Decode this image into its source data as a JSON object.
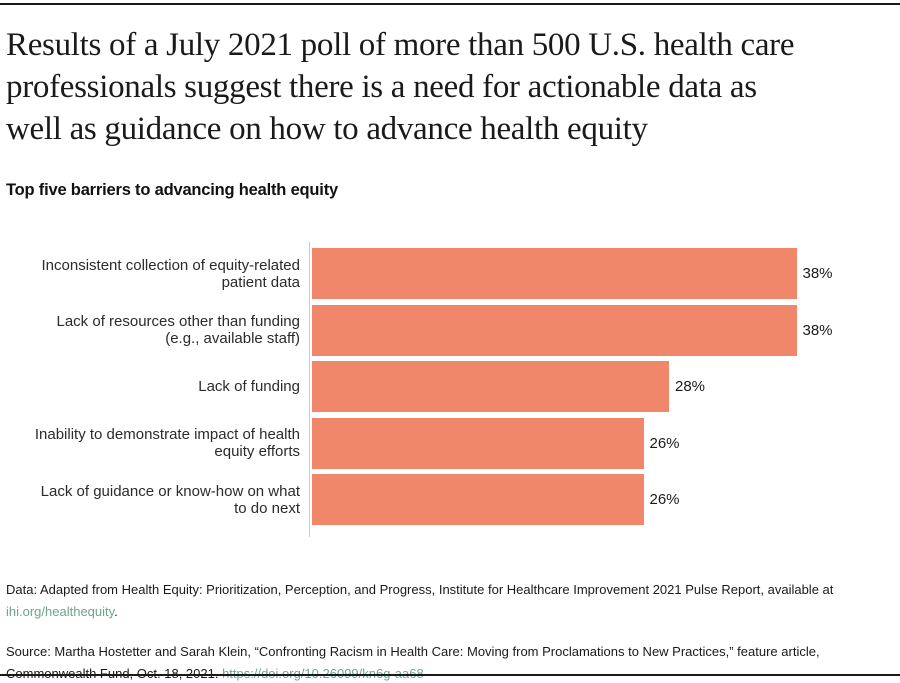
{
  "header": {
    "title_lines": [
      "Results of a July 2021 poll of more than 500 U.S. health care",
      "professionals suggest there is a need for actionable data as",
      "well as guidance on how to advance health equity"
    ],
    "subtitle": "Top five barriers to advancing health equity"
  },
  "chart_data": {
    "type": "bar",
    "orientation": "horizontal",
    "title": "Top five barriers to advancing health equity",
    "categories": [
      "Inconsistent collection of equity-related patient data",
      "Lack of resources other than funding (e.g., available staff)",
      "Lack of funding",
      "Inability to demonstrate impact of health equity efforts",
      "Lack of guidance or know-how on what to do next"
    ],
    "category_label_lines": [
      [
        "Inconsistent collection of equity-related",
        "patient data"
      ],
      [
        "Lack of resources other than funding",
        "(e.g., available staff)"
      ],
      [
        "Lack of funding"
      ],
      [
        "Inability to demonstrate impact of health",
        "equity efforts"
      ],
      [
        "Lack of guidance or know-how on what",
        "to do next"
      ]
    ],
    "values": [
      38,
      38,
      28,
      26,
      26
    ],
    "value_labels": [
      "38%",
      "38%",
      "28%",
      "26%",
      "26%"
    ],
    "unit": "percent",
    "xlim": [
      0,
      46
    ],
    "grid": false,
    "legend": false,
    "bar_color": "#F0876A",
    "axis_color": "#CCCCCC"
  },
  "footer": {
    "data_note": {
      "line1": "Data: Adapted from Health Equity: Prioritization, Perception, and Progress, Institute for Healthcare Improvement 2021 Pulse Report, available at",
      "link_text": "ihi.org/healthequity",
      "after_link": "."
    },
    "source_note": {
      "line1": "Source: Martha Hostetter and Sarah Klein, “Confronting Racism in Health Care: Moving from Proclamations to New Practices,” feature article,",
      "line2_prefix": "Commonwealth Fund, Oct. 18, 2021. ",
      "link_text": "https://doi.org/10.26099/kn6g-aa68"
    },
    "link_color": "#6EA58C"
  },
  "colors": {
    "bar": "#F0876A",
    "link": "#6EA58C",
    "rule": "#1A1A1A",
    "text": "#1A1A1A"
  }
}
